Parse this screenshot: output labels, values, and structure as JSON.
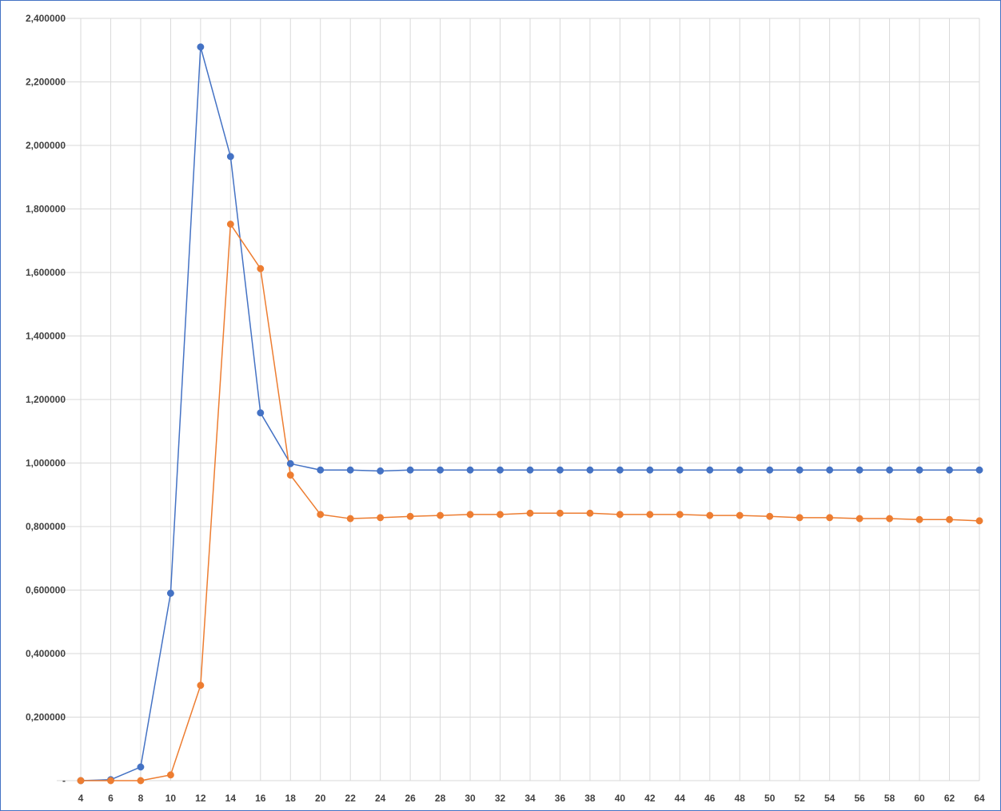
{
  "chart_data": {
    "type": "line",
    "title": "",
    "xlabel": "",
    "ylabel": "",
    "x": [
      4,
      6,
      8,
      10,
      12,
      14,
      16,
      18,
      20,
      22,
      24,
      26,
      28,
      30,
      32,
      34,
      36,
      38,
      40,
      42,
      44,
      46,
      48,
      50,
      52,
      54,
      56,
      58,
      60,
      62,
      64
    ],
    "x_tick_labels": [
      "4",
      "6",
      "8",
      "10",
      "12",
      "14",
      "16",
      "18",
      "20",
      "22",
      "24",
      "26",
      "28",
      "30",
      "32",
      "34",
      "36",
      "38",
      "40",
      "42",
      "44",
      "46",
      "48",
      "50",
      "52",
      "54",
      "56",
      "58",
      "60",
      "62",
      "64"
    ],
    "ylim": [
      0,
      2.4
    ],
    "y_ticks": [
      0,
      0.2,
      0.4,
      0.6,
      0.8,
      1.0,
      1.2,
      1.4,
      1.6,
      1.8,
      2.0,
      2.2,
      2.4
    ],
    "y_tick_labels": [
      "-",
      "0,200000",
      "0,400000",
      "0,600000",
      "0,800000",
      "1,000000",
      "1,200000",
      "1,400000",
      "1,600000",
      "1,800000",
      "2,000000",
      "2,200000",
      "2,400000"
    ],
    "grid": true,
    "legend": "none",
    "series": [
      {
        "color": "#4472c4",
        "values": [
          0.0,
          0.003,
          0.043,
          0.59,
          2.31,
          1.965,
          1.158,
          0.998,
          0.978,
          0.978,
          0.975,
          0.978,
          0.978,
          0.978,
          0.978,
          0.978,
          0.978,
          0.978,
          0.978,
          0.978,
          0.978,
          0.978,
          0.978,
          0.978,
          0.978,
          0.978,
          0.978,
          0.978,
          0.978,
          0.978,
          0.978
        ]
      },
      {
        "color": "#ed7d31",
        "values": [
          0.0,
          0.0,
          0.0,
          0.018,
          0.3,
          1.752,
          1.612,
          0.962,
          0.838,
          0.825,
          0.828,
          0.832,
          0.835,
          0.838,
          0.838,
          0.842,
          0.842,
          0.842,
          0.838,
          0.838,
          0.838,
          0.835,
          0.835,
          0.832,
          0.828,
          0.828,
          0.825,
          0.825,
          0.822,
          0.822,
          0.818
        ]
      }
    ]
  }
}
